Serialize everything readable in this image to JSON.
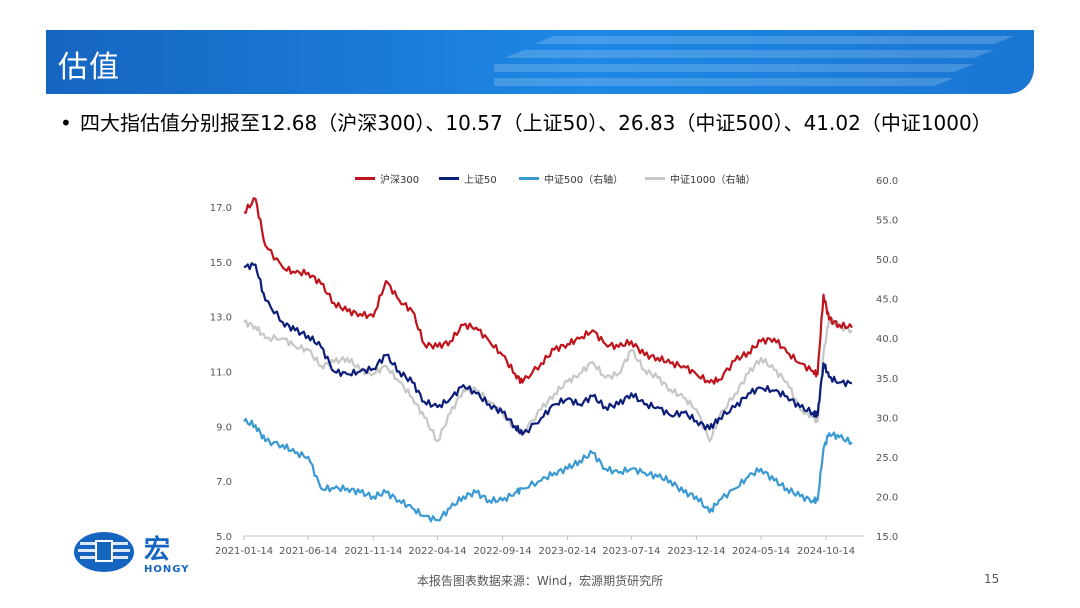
{
  "header": {
    "title": "估值"
  },
  "bullet": {
    "text": "四大指估值分别报至12.68（沪深300）、10.57（上证50）、26.83（中证500）、41.02（中证1000）"
  },
  "footer": {
    "source": "本报告图表数据来源：Wind，宏源期货研究所",
    "page": "15"
  },
  "logo": {
    "text_cn": "宏",
    "text_en": "HONGY"
  },
  "chart_data": {
    "type": "line",
    "x_ticks": [
      "2021-01-14",
      "2021-06-14",
      "2021-11-14",
      "2022-04-14",
      "2022-09-14",
      "2023-02-14",
      "2023-07-14",
      "2023-12-14",
      "2024-05-14",
      "2024-10-14"
    ],
    "y_left": {
      "min": 5.0,
      "max": 17.0,
      "ticks": [
        "5.0",
        "7.0",
        "9.0",
        "11.0",
        "13.0",
        "15.0",
        "17.0"
      ]
    },
    "y_right": {
      "min": 15.0,
      "max": 60.0,
      "ticks": [
        "15.0",
        "20.0",
        "25.0",
        "30.0",
        "35.0",
        "40.0",
        "45.0",
        "50.0",
        "55.0",
        "60.0"
      ]
    },
    "grid": false,
    "legend_position": "top",
    "series": [
      {
        "name": "沪深300",
        "axis": "left",
        "color": "#c0141c",
        "x": [
          "2021-01-14",
          "2021-02-10",
          "2021-03-05",
          "2021-04-15",
          "2021-05-14",
          "2021-06-14",
          "2021-07-14",
          "2021-08-14",
          "2021-09-14",
          "2021-10-14",
          "2021-11-14",
          "2021-12-14",
          "2022-01-14",
          "2022-02-14",
          "2022-03-14",
          "2022-04-14",
          "2022-05-14",
          "2022-06-14",
          "2022-07-14",
          "2022-08-14",
          "2022-09-14",
          "2022-10-14",
          "2022-10-31",
          "2022-12-14",
          "2023-01-14",
          "2023-02-14",
          "2023-03-14",
          "2023-04-14",
          "2023-05-14",
          "2023-06-14",
          "2023-07-14",
          "2023-08-14",
          "2023-09-14",
          "2023-10-14",
          "2023-11-14",
          "2023-12-14",
          "2024-01-14",
          "2024-02-05",
          "2024-03-14",
          "2024-04-14",
          "2024-05-14",
          "2024-06-14",
          "2024-07-14",
          "2024-08-14",
          "2024-09-14",
          "2024-09-24",
          "2024-10-08",
          "2024-10-21",
          "2024-11-14",
          "2024-12-14"
        ],
        "y": [
          16.8,
          17.3,
          15.6,
          14.8,
          14.6,
          14.6,
          14.2,
          13.5,
          13.2,
          13.1,
          13.0,
          14.3,
          13.6,
          13.2,
          12.0,
          11.9,
          12.1,
          12.7,
          12.6,
          12.1,
          11.6,
          10.9,
          10.6,
          11.3,
          11.8,
          12.0,
          12.2,
          12.5,
          12.0,
          11.9,
          12.1,
          11.6,
          11.5,
          11.3,
          11.2,
          10.9,
          10.6,
          10.7,
          11.4,
          11.7,
          12.1,
          12.2,
          11.7,
          11.3,
          11.0,
          10.9,
          13.8,
          12.9,
          12.7,
          12.6
        ]
      },
      {
        "name": "上证50",
        "axis": "left",
        "color": "#0d1e7a",
        "x": [
          "2021-01-14",
          "2021-02-10",
          "2021-03-05",
          "2021-04-15",
          "2021-05-14",
          "2021-06-14",
          "2021-07-14",
          "2021-08-14",
          "2021-09-14",
          "2021-10-14",
          "2021-11-14",
          "2021-12-14",
          "2022-01-14",
          "2022-02-14",
          "2022-03-14",
          "2022-04-14",
          "2022-05-14",
          "2022-06-14",
          "2022-07-14",
          "2022-08-14",
          "2022-09-14",
          "2022-10-14",
          "2022-10-31",
          "2022-12-14",
          "2023-01-14",
          "2023-02-14",
          "2023-03-14",
          "2023-04-14",
          "2023-05-14",
          "2023-06-14",
          "2023-07-14",
          "2023-08-14",
          "2023-09-14",
          "2023-10-14",
          "2023-11-14",
          "2023-12-14",
          "2024-01-14",
          "2024-02-05",
          "2024-03-14",
          "2024-04-14",
          "2024-05-14",
          "2024-06-14",
          "2024-07-14",
          "2024-08-14",
          "2024-09-14",
          "2024-09-24",
          "2024-10-08",
          "2024-10-21",
          "2024-11-14",
          "2024-12-14"
        ],
        "y": [
          14.8,
          14.9,
          13.6,
          12.8,
          12.5,
          12.3,
          11.9,
          11.0,
          10.9,
          11.0,
          11.1,
          11.6,
          11.0,
          10.6,
          9.9,
          9.7,
          10.0,
          10.5,
          10.2,
          9.8,
          9.5,
          9.0,
          8.7,
          9.3,
          9.8,
          10.0,
          9.8,
          10.1,
          9.7,
          9.8,
          10.2,
          9.8,
          9.7,
          9.4,
          9.5,
          9.2,
          8.9,
          9.3,
          9.7,
          10.2,
          10.4,
          10.3,
          10.1,
          9.7,
          9.5,
          9.4,
          11.3,
          10.8,
          10.6,
          10.57
        ]
      },
      {
        "name": "中证500（右轴）",
        "axis": "right",
        "color": "#3b9ad2",
        "x": [
          "2021-01-14",
          "2021-02-10",
          "2021-03-05",
          "2021-04-15",
          "2021-05-14",
          "2021-06-14",
          "2021-07-14",
          "2021-08-14",
          "2021-09-14",
          "2021-10-14",
          "2021-11-14",
          "2021-12-14",
          "2022-01-14",
          "2022-02-14",
          "2022-03-14",
          "2022-04-14",
          "2022-05-14",
          "2022-06-14",
          "2022-07-14",
          "2022-08-14",
          "2022-09-14",
          "2022-10-14",
          "2022-10-31",
          "2022-12-14",
          "2023-01-14",
          "2023-02-14",
          "2023-03-14",
          "2023-04-14",
          "2023-05-14",
          "2023-06-14",
          "2023-07-14",
          "2023-08-14",
          "2023-09-14",
          "2023-10-14",
          "2023-11-14",
          "2023-12-14",
          "2024-01-14",
          "2024-02-05",
          "2024-03-14",
          "2024-04-14",
          "2024-05-14",
          "2024-06-14",
          "2024-07-14",
          "2024-08-14",
          "2024-09-14",
          "2024-09-24",
          "2024-10-08",
          "2024-10-21",
          "2024-11-14",
          "2024-12-14"
        ],
        "y": [
          29.5,
          29.0,
          27.0,
          26.5,
          25.5,
          25.0,
          21.0,
          21.0,
          21.0,
          20.5,
          20.0,
          20.5,
          19.5,
          18.5,
          17.5,
          17.0,
          18.5,
          20.0,
          20.5,
          19.5,
          19.5,
          20.5,
          21.0,
          22.0,
          23.0,
          23.5,
          24.5,
          25.5,
          23.5,
          23.0,
          23.5,
          23.0,
          22.5,
          22.0,
          20.5,
          20.0,
          18.0,
          19.5,
          21.0,
          22.5,
          23.5,
          22.0,
          21.0,
          20.0,
          19.5,
          19.5,
          26.0,
          28.0,
          27.5,
          26.83
        ]
      },
      {
        "name": "中证1000（右轴）",
        "axis": "right",
        "color": "#c7c7c7",
        "x": [
          "2021-01-14",
          "2021-02-10",
          "2021-03-05",
          "2021-04-15",
          "2021-05-14",
          "2021-06-14",
          "2021-07-14",
          "2021-08-14",
          "2021-09-14",
          "2021-10-14",
          "2021-11-14",
          "2021-12-14",
          "2022-01-14",
          "2022-02-14",
          "2022-03-14",
          "2022-04-14",
          "2022-05-14",
          "2022-06-14",
          "2022-07-14",
          "2022-08-14",
          "2022-09-14",
          "2022-10-14",
          "2022-10-31",
          "2022-12-14",
          "2023-01-14",
          "2023-02-14",
          "2023-03-14",
          "2023-04-14",
          "2023-05-14",
          "2023-06-14",
          "2023-07-14",
          "2023-08-14",
          "2023-09-14",
          "2023-10-14",
          "2023-11-14",
          "2023-12-14",
          "2024-01-14",
          "2024-02-05",
          "2024-03-14",
          "2024-04-14",
          "2024-05-14",
          "2024-06-14",
          "2024-07-14",
          "2024-08-14",
          "2024-09-14",
          "2024-09-24",
          "2024-10-08",
          "2024-10-21",
          "2024-11-14",
          "2024-12-14"
        ],
        "y": [
          42.0,
          41.5,
          40.0,
          40.0,
          39.0,
          38.5,
          36.5,
          37.0,
          37.5,
          36.0,
          35.5,
          36.5,
          34.5,
          32.5,
          30.0,
          27.0,
          30.5,
          33.5,
          33.5,
          32.0,
          30.5,
          28.5,
          28.0,
          31.0,
          33.0,
          34.5,
          35.5,
          37.0,
          35.0,
          35.5,
          38.5,
          36.0,
          35.0,
          33.5,
          32.5,
          31.0,
          27.0,
          30.0,
          33.0,
          35.5,
          37.5,
          36.0,
          34.5,
          31.0,
          30.0,
          29.5,
          38.0,
          42.5,
          41.5,
          41.02
        ]
      }
    ]
  }
}
